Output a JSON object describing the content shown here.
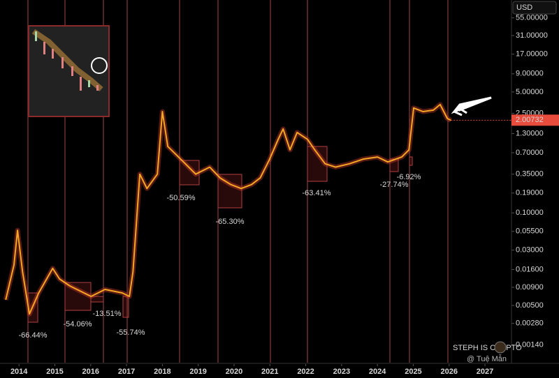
{
  "chart_data": {
    "type": "line",
    "currency": "USD",
    "log_scale": true,
    "color": "#f5a623",
    "x": [
      2013.63,
      2013.86,
      2013.96,
      2014.1,
      2014.29,
      2014.55,
      2014.94,
      2015.13,
      2015.42,
      2016.01,
      2016.4,
      2016.88,
      2017.08,
      2017.18,
      2017.37,
      2017.57,
      2017.86,
      2018.0,
      2018.15,
      2018.54,
      2018.93,
      2019.32,
      2019.61,
      2019.91,
      2020.2,
      2020.49,
      2020.73,
      2020.98,
      2021.23,
      2021.37,
      2021.56,
      2021.76,
      2022.05,
      2022.25,
      2022.54,
      2022.83,
      2023.22,
      2023.61,
      2024.0,
      2024.29,
      2024.68,
      2024.88,
      2025.01,
      2025.27,
      2025.56,
      2025.75,
      2025.95,
      2026.05
    ],
    "values": [
      0.006,
      0.0185,
      0.057,
      0.0148,
      0.0038,
      0.0075,
      0.0166,
      0.0118,
      0.0094,
      0.0067,
      0.0084,
      0.0075,
      0.0067,
      0.0148,
      0.35,
      0.22,
      0.35,
      2.65,
      0.86,
      0.55,
      0.35,
      0.44,
      0.31,
      0.25,
      0.22,
      0.25,
      0.31,
      0.55,
      1.08,
      1.51,
      0.77,
      1.35,
      1.08,
      0.77,
      0.49,
      0.44,
      0.49,
      0.57,
      0.61,
      0.52,
      0.61,
      0.77,
      2.98,
      2.65,
      2.78,
      3.33,
      2.12,
      2.0
    ],
    "current_price": 2.00732,
    "xlim": [
      2013.47,
      2027.74
    ],
    "xticks": [
      2014,
      2015,
      2016,
      2017,
      2018,
      2019,
      2020,
      2021,
      2022,
      2023,
      2024,
      2025,
      2026,
      2027
    ],
    "ylim": [
      0.00088,
      98
    ],
    "yticks": [
      {
        "value": 55,
        "label": "55.00000"
      },
      {
        "value": 31,
        "label": "31.00000"
      },
      {
        "value": 17,
        "label": "17.00000"
      },
      {
        "value": 9,
        "label": "9.00000"
      },
      {
        "value": 5,
        "label": "5.00000"
      },
      {
        "value": 2.5,
        "label": "2.50000"
      },
      {
        "value": 1.3,
        "label": "1.30000"
      },
      {
        "value": 0.7,
        "label": "0.70000"
      },
      {
        "value": 0.35,
        "label": "0.35000"
      },
      {
        "value": 0.19,
        "label": "0.19000"
      },
      {
        "value": 0.1,
        "label": "0.10000"
      },
      {
        "value": 0.055,
        "label": "0.05500"
      },
      {
        "value": 0.03,
        "label": "0.03000"
      },
      {
        "value": 0.016,
        "label": "0.01600"
      },
      {
        "value": 0.009,
        "label": "0.00900"
      },
      {
        "value": 0.005,
        "label": "0.00500"
      },
      {
        "value": 0.0028,
        "label": "0.00280"
      },
      {
        "value": 0.0014,
        "label": "0.00140"
      }
    ],
    "annotations": [
      "-66.44%",
      "-54.06%",
      "-13.51%",
      "-55.74%",
      "-50.59%",
      "-65.30%",
      "-63.41%",
      "-27.74%",
      "-6.92%"
    ],
    "watermarks": [
      "STEPH IS CRYPTO",
      "@ Tuệ Mẫn"
    ]
  }
}
